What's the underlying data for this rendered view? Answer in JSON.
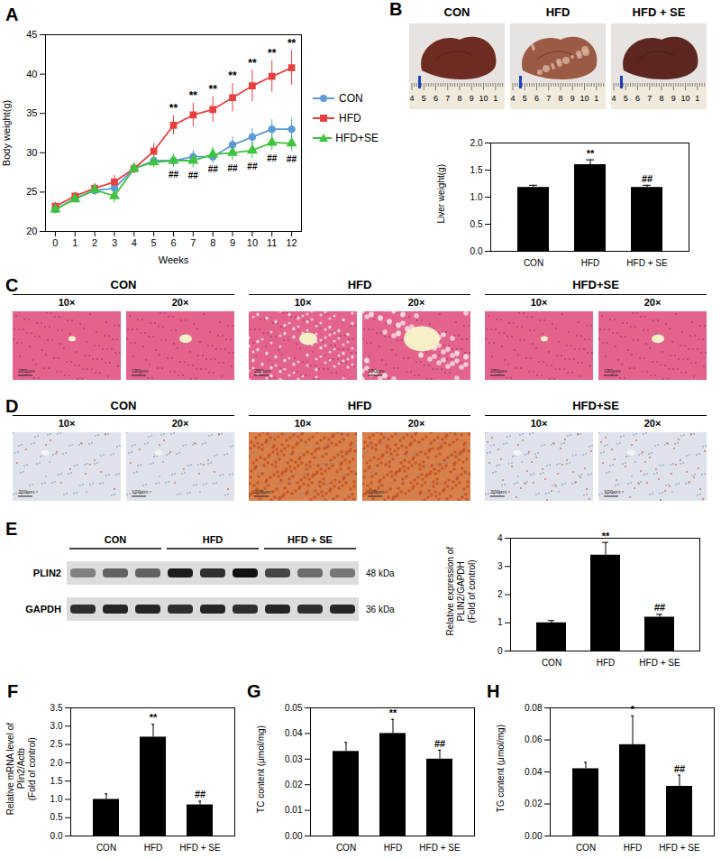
{
  "chart_data": [
    {
      "type": "line",
      "title": "A",
      "x_label": "Weeks",
      "y_label": "Body weight(g)",
      "x": [
        0,
        1,
        2,
        3,
        4,
        5,
        6,
        7,
        8,
        9,
        10,
        11,
        12
      ],
      "xlim": [
        -0.5,
        12.5
      ],
      "xticks": [
        0,
        1,
        2,
        3,
        4,
        5,
        6,
        7,
        8,
        9,
        10,
        11,
        12
      ],
      "ylim": [
        20,
        45
      ],
      "yticks": [
        20,
        25,
        30,
        35,
        40,
        45
      ],
      "legend": "right",
      "series": [
        {
          "name": "CON",
          "color": "#5b9bd5",
          "marker": "circle",
          "values": [
            22.8,
            24.2,
            25.2,
            25.5,
            28.0,
            29.0,
            29.0,
            29.5,
            29.5,
            31.0,
            32.0,
            33.0,
            33.0
          ],
          "errors": [
            0.4,
            0.4,
            0.5,
            0.5,
            0.6,
            0.7,
            0.7,
            0.8,
            0.8,
            1.0,
            1.1,
            1.2,
            1.3
          ]
        },
        {
          "name": "HFD",
          "color": "#e8403f",
          "marker": "square",
          "values": [
            23.2,
            24.5,
            25.5,
            26.3,
            28.0,
            30.2,
            33.5,
            34.8,
            35.5,
            37.0,
            38.5,
            39.7,
            40.8
          ],
          "errors": [
            0.5,
            0.5,
            0.6,
            0.8,
            0.7,
            1.0,
            1.2,
            1.5,
            1.6,
            1.8,
            2.0,
            2.0,
            2.2
          ]
        },
        {
          "name": "HFD+SE",
          "color": "#3fc33f",
          "marker": "triangle",
          "values": [
            22.8,
            24.1,
            25.3,
            24.5,
            28.0,
            28.8,
            29.0,
            29.0,
            29.8,
            30.0,
            30.3,
            31.3,
            31.2
          ],
          "errors": [
            0.4,
            0.4,
            0.5,
            0.9,
            0.6,
            0.7,
            0.8,
            0.9,
            0.9,
            1.0,
            1.0,
            1.0,
            1.0
          ]
        }
      ],
      "annotations": [
        {
          "text": "**",
          "series": "HFD",
          "x": [
            6,
            7,
            8,
            9,
            10,
            11,
            12
          ],
          "position": "above"
        },
        {
          "text": "##",
          "series": "HFD+SE",
          "x": [
            6,
            7,
            8,
            9,
            10,
            11,
            12
          ],
          "position": "below"
        }
      ]
    },
    {
      "type": "bar",
      "y_label": "Liver weight(g)",
      "categories": [
        "CON",
        "HFD",
        "HFD + SE"
      ],
      "values": [
        1.18,
        1.6,
        1.18
      ],
      "errors": [
        0.04,
        0.09,
        0.04
      ],
      "color": "#000000",
      "ylim": [
        0,
        2
      ],
      "yticks": [
        {
          "value": 0,
          "label": "0.0"
        },
        {
          "value": 0.5,
          "label": "0.5"
        },
        {
          "value": 1,
          "label": "1.0"
        },
        {
          "value": 1.5,
          "label": "1.5"
        },
        {
          "value": 2,
          "label": "2.0"
        }
      ],
      "annotations": [
        {
          "category": "HFD",
          "text": "**"
        },
        {
          "category": "HFD + SE",
          "text": "##"
        }
      ]
    },
    {
      "type": "bar",
      "y_label": "Relative expression of\nPLIN2/GAPDH\n(Fold of control)",
      "categories": [
        "CON",
        "HFD",
        "HFD + SE"
      ],
      "values": [
        1.0,
        3.4,
        1.2
      ],
      "errors": [
        0.08,
        0.45,
        0.1
      ],
      "color": "#000000",
      "ylim": [
        0,
        4
      ],
      "yticks": [
        0,
        1,
        2,
        3,
        4
      ],
      "annotations": [
        {
          "category": "HFD",
          "text": "**"
        },
        {
          "category": "HFD + SE",
          "text": "##"
        }
      ]
    },
    {
      "type": "bar",
      "title": "F",
      "y_label": "Relative mRNA level of\nPlin2/Actb\n(Fold of control)",
      "categories": [
        "CON",
        "HFD",
        "HFD + SE"
      ],
      "values": [
        1.0,
        2.7,
        0.85
      ],
      "errors": [
        0.15,
        0.35,
        0.1
      ],
      "color": "#000000",
      "ylim": [
        0,
        3.5
      ],
      "yticks": [
        {
          "value": 0,
          "label": "0.0"
        },
        {
          "value": 0.5,
          "label": "0.5"
        },
        {
          "value": 1,
          "label": "1.0"
        },
        {
          "value": 1.5,
          "label": "1.5"
        },
        {
          "value": 2,
          "label": "2.0"
        },
        {
          "value": 2.5,
          "label": "2.5"
        },
        {
          "value": 3,
          "label": "3.0"
        },
        {
          "value": 3.5,
          "label": "3.5"
        }
      ],
      "annotations": [
        {
          "category": "HFD",
          "text": "**"
        },
        {
          "category": "HFD + SE",
          "text": "##"
        }
      ]
    },
    {
      "type": "bar",
      "title": "G",
      "y_label": "TC content (μmol/mg)",
      "categories": [
        "CON",
        "HFD",
        "HFD + SE"
      ],
      "values": [
        0.033,
        0.04,
        0.03
      ],
      "errors": [
        0.0035,
        0.0055,
        0.0035
      ],
      "color": "#000000",
      "ylim": [
        0,
        0.05
      ],
      "yticks": [
        {
          "value": 0,
          "label": "0.00"
        },
        {
          "value": 0.01,
          "label": "0.01"
        },
        {
          "value": 0.02,
          "label": "0.02"
        },
        {
          "value": 0.03,
          "label": "0.03"
        },
        {
          "value": 0.04,
          "label": "0.04"
        },
        {
          "value": 0.05,
          "label": "0.05"
        }
      ],
      "annotations": [
        {
          "category": "HFD",
          "text": "**"
        },
        {
          "category": "HFD + SE",
          "text": "##"
        }
      ]
    },
    {
      "type": "bar",
      "title": "H",
      "y_label": "TG content (μmol/mg)",
      "categories": [
        "CON",
        "HFD",
        "HFD + SE"
      ],
      "values": [
        0.042,
        0.057,
        0.031
      ],
      "errors": [
        0.004,
        0.018,
        0.007
      ],
      "color": "#000000",
      "ylim": [
        0,
        0.08
      ],
      "yticks": [
        {
          "value": 0,
          "label": "0.00"
        },
        {
          "value": 0.02,
          "label": "0.02"
        },
        {
          "value": 0.04,
          "label": "0.04"
        },
        {
          "value": 0.06,
          "label": "0.06"
        },
        {
          "value": 0.08,
          "label": "0.08"
        }
      ],
      "annotations": [
        {
          "category": "HFD",
          "text": "*"
        },
        {
          "category": "HFD + SE",
          "text": "##"
        }
      ]
    }
  ],
  "figure": {
    "B_photos": {
      "panel": "B",
      "groups": [
        "CON",
        "HFD",
        "HFD + SE"
      ],
      "ruler": [
        "4",
        "5",
        "6",
        "7",
        "8",
        "9",
        "10",
        "1"
      ]
    },
    "C": {
      "panel": "C",
      "groups": [
        "CON",
        "HFD",
        "HFD+SE"
      ],
      "magnifications": [
        "10×",
        "20×"
      ],
      "scale_bars": [
        "200μm",
        "100μm"
      ]
    },
    "D": {
      "panel": "D",
      "groups": [
        "CON",
        "HFD",
        "HFD+SE"
      ],
      "magnifications": [
        "10×",
        "20×"
      ],
      "scale_bars": [
        "200μm",
        "100μm"
      ]
    },
    "E_blot": {
      "panel": "E",
      "groups": [
        "CON",
        "HFD",
        "HFD + SE"
      ],
      "rows": [
        {
          "name": "PLIN2",
          "size": "48 kDa",
          "bands": [
            0.45,
            0.6,
            0.6,
            0.95,
            0.85,
            1.0,
            0.75,
            0.55,
            0.5
          ]
        },
        {
          "name": "GAPDH",
          "size": "36 kDa",
          "bands": [
            0.85,
            0.9,
            0.9,
            0.85,
            0.9,
            0.85,
            0.9,
            0.85,
            0.9
          ]
        }
      ]
    }
  }
}
